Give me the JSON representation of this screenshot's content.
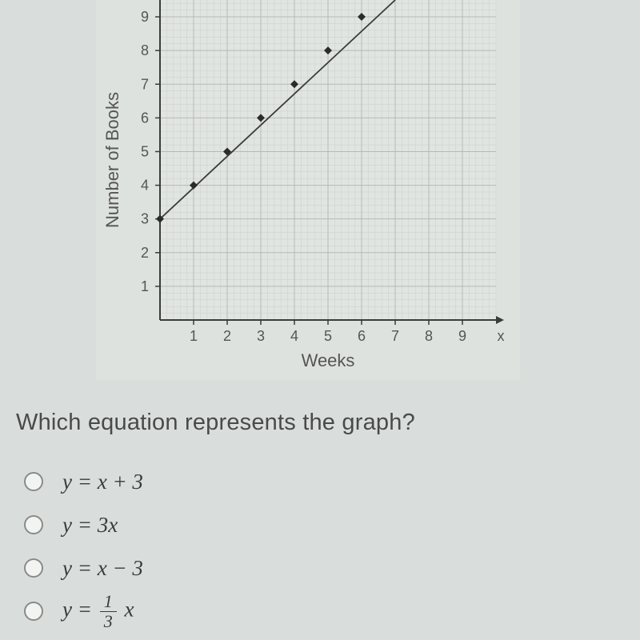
{
  "chart": {
    "type": "line-scatter",
    "xlabel": "Weeks",
    "ylabel": "Number of Books",
    "x_axis_var": "x",
    "xlim": [
      0,
      10
    ],
    "ylim": [
      0,
      9.5
    ],
    "xticks": [
      1,
      2,
      3,
      4,
      5,
      6,
      7,
      8,
      9
    ],
    "yticks": [
      1,
      2,
      3,
      4,
      5,
      6,
      7,
      8,
      9
    ],
    "points": [
      {
        "x": 0,
        "y": 3
      },
      {
        "x": 1,
        "y": 4
      },
      {
        "x": 2,
        "y": 5
      },
      {
        "x": 3,
        "y": 6
      },
      {
        "x": 4,
        "y": 7
      },
      {
        "x": 5,
        "y": 8
      },
      {
        "x": 6,
        "y": 9
      }
    ],
    "line": {
      "x1": 0,
      "y1": 3,
      "x2": 7,
      "y2": 10
    },
    "grid_color": "#b7b9b7",
    "minor_grid_color": "#cccecb",
    "axis_color": "#3b3b3b",
    "text_color": "#555555",
    "point_color": "#2b2b2b",
    "line_color": "#3b3b3b",
    "line_width": 1.8,
    "marker_size": 5,
    "background_color": "#dee2df",
    "plot_background_color": "#e1e5e2",
    "label_fontsize": 22,
    "tick_fontsize": 18
  },
  "question": "Which equation represents the graph?",
  "options": [
    {
      "id": "opt-a",
      "html": "<i>y</i> = <i>x</i> + 3"
    },
    {
      "id": "opt-b",
      "html": "<i>y</i> = 3<i>x</i>"
    },
    {
      "id": "opt-c",
      "html": "<i>y</i> = <i>x</i> − 3"
    },
    {
      "id": "opt-d",
      "html": "<i>y</i> = <span class=\"frac\"><span class=\"num\">1</span><span class=\"den\">3</span></span> <i>x</i>"
    }
  ],
  "colors": {
    "page_bg": "#d9dedc",
    "text": "#4a4a4a"
  }
}
